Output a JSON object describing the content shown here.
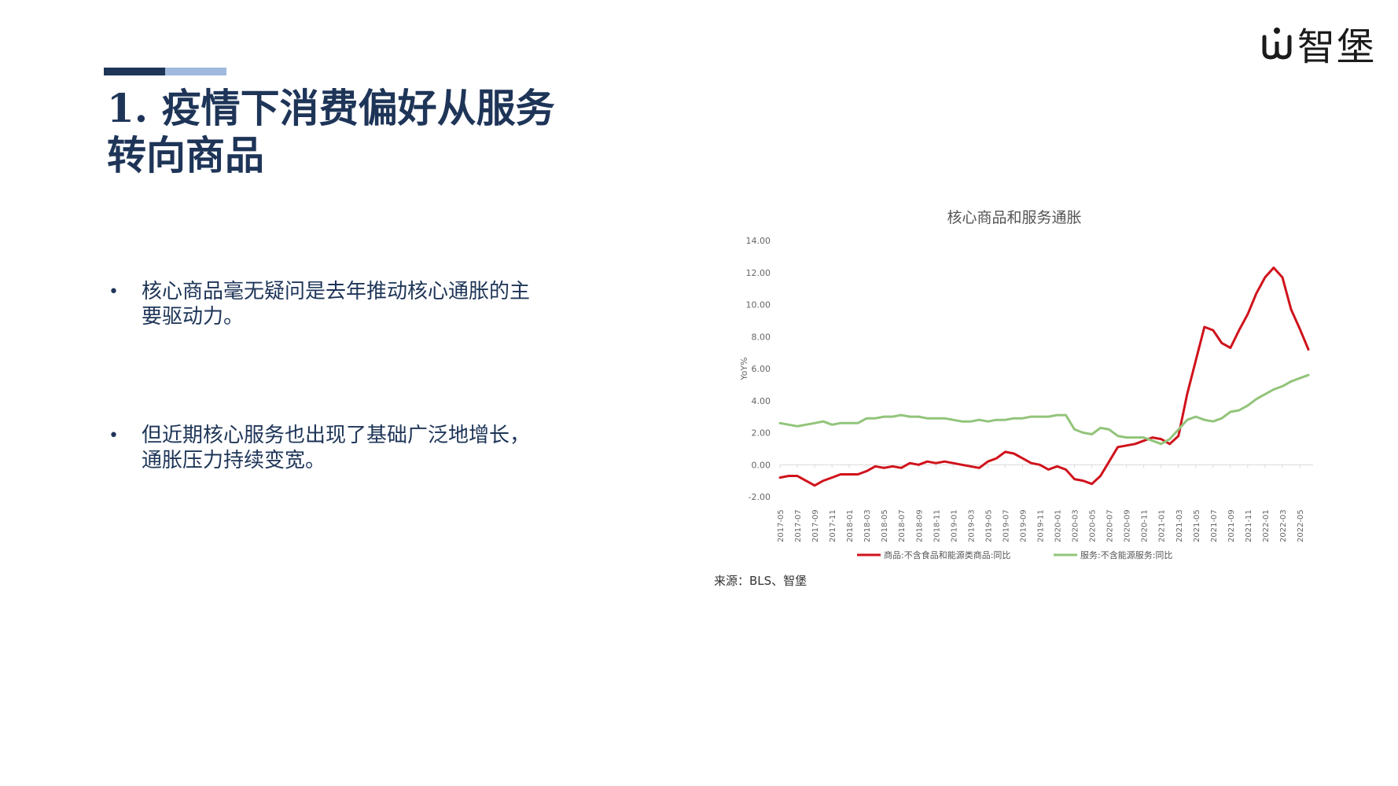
{
  "brand": {
    "name": "智堡"
  },
  "slide": {
    "title": "1. 疫情下消费偏好从服务转向商品",
    "bullets": [
      "核心商品毫无疑问是去年推动核心通胀的主要驱动力。",
      "但近期核心服务也出现了基础广泛地增长，通胀压力持续变宽。"
    ],
    "source": "来源：BLS、智堡"
  },
  "colors": {
    "title": "#1e3558",
    "accent_dark": "#1e3558",
    "accent_light": "#9fbadc",
    "goods_line": "#d0121b",
    "services_line": "#92c47a"
  },
  "chart_data": {
    "type": "line",
    "title": "核心商品和服务通胀",
    "ylabel": "YoY%",
    "xlabel": "",
    "ylim": [
      -2,
      14
    ],
    "y_ticks": [
      "-2.00",
      "0.00",
      "2.00",
      "4.00",
      "6.00",
      "8.00",
      "10.00",
      "12.00",
      "14.00"
    ],
    "x_tick_labels": [
      "2017-05",
      "2017-07",
      "2017-09",
      "2017-11",
      "2018-01",
      "2018-03",
      "2018-05",
      "2018-07",
      "2018-09",
      "2018-11",
      "2019-01",
      "2019-03",
      "2019-05",
      "2019-07",
      "2019-09",
      "2019-11",
      "2020-01",
      "2020-03",
      "2020-05",
      "2020-07",
      "2020-09",
      "2020-11",
      "2021-01",
      "2021-03",
      "2021-05",
      "2021-07",
      "2021-09",
      "2021-11",
      "2022-01",
      "2022-03",
      "2022-05"
    ],
    "x": [
      "2017-05",
      "2017-06",
      "2017-07",
      "2017-08",
      "2017-09",
      "2017-10",
      "2017-11",
      "2017-12",
      "2018-01",
      "2018-02",
      "2018-03",
      "2018-04",
      "2018-05",
      "2018-06",
      "2018-07",
      "2018-08",
      "2018-09",
      "2018-10",
      "2018-11",
      "2018-12",
      "2019-01",
      "2019-02",
      "2019-03",
      "2019-04",
      "2019-05",
      "2019-06",
      "2019-07",
      "2019-08",
      "2019-09",
      "2019-10",
      "2019-11",
      "2019-12",
      "2020-01",
      "2020-02",
      "2020-03",
      "2020-04",
      "2020-05",
      "2020-06",
      "2020-07",
      "2020-08",
      "2020-09",
      "2020-10",
      "2020-11",
      "2020-12",
      "2021-01",
      "2021-02",
      "2021-03",
      "2021-04",
      "2021-05",
      "2021-06",
      "2021-07",
      "2021-08",
      "2021-09",
      "2021-10",
      "2021-11",
      "2021-12",
      "2022-01",
      "2022-02",
      "2022-03",
      "2022-04",
      "2022-05",
      "2022-06"
    ],
    "legend_position": "bottom",
    "grid": false,
    "series": [
      {
        "name": "商品:不含食品和能源类商品:同比",
        "color": "#d0121b",
        "values": [
          -0.8,
          -0.7,
          -0.7,
          -1.0,
          -1.3,
          -1.0,
          -0.8,
          -0.6,
          -0.6,
          -0.6,
          -0.4,
          -0.1,
          -0.2,
          -0.1,
          -0.2,
          0.1,
          0.0,
          0.2,
          0.1,
          0.2,
          0.1,
          0.0,
          -0.1,
          -0.2,
          0.2,
          0.4,
          0.8,
          0.7,
          0.4,
          0.1,
          0.0,
          -0.3,
          -0.1,
          -0.3,
          -0.9,
          -1.0,
          -1.2,
          -0.7,
          0.2,
          1.1,
          1.2,
          1.3,
          1.5,
          1.7,
          1.6,
          1.3,
          1.8,
          4.4,
          6.5,
          8.6,
          8.4,
          7.6,
          7.3,
          8.4,
          9.4,
          10.7,
          11.7,
          12.3,
          11.7,
          9.7,
          8.5,
          7.2
        ]
      },
      {
        "name": "服务:不含能源服务:同比",
        "color": "#92c47a",
        "values": [
          2.6,
          2.5,
          2.4,
          2.5,
          2.6,
          2.7,
          2.5,
          2.6,
          2.6,
          2.6,
          2.9,
          2.9,
          3.0,
          3.0,
          3.1,
          3.0,
          3.0,
          2.9,
          2.9,
          2.9,
          2.8,
          2.7,
          2.7,
          2.8,
          2.7,
          2.8,
          2.8,
          2.9,
          2.9,
          3.0,
          3.0,
          3.0,
          3.1,
          3.1,
          2.2,
          2.0,
          1.9,
          2.3,
          2.2,
          1.8,
          1.7,
          1.7,
          1.7,
          1.5,
          1.3,
          1.6,
          2.2,
          2.8,
          3.0,
          2.8,
          2.7,
          2.9,
          3.3,
          3.4,
          3.7,
          4.1,
          4.4,
          4.7,
          4.9,
          5.2,
          5.4,
          5.6
        ]
      }
    ]
  }
}
